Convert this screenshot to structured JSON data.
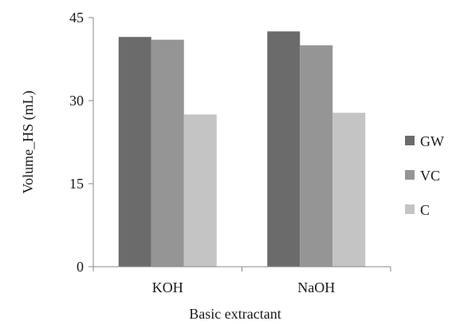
{
  "chart_data": {
    "type": "bar",
    "categories": [
      "KOH",
      "NaOH"
    ],
    "series": [
      {
        "name": "GW",
        "values": [
          41.5,
          42.5
        ],
        "color": "#6b6b6b"
      },
      {
        "name": "VC",
        "values": [
          41.0,
          40.0
        ],
        "color": "#959595"
      },
      {
        "name": "C",
        "values": [
          27.5,
          27.8
        ],
        "color": "#c4c4c4"
      }
    ],
    "title": "",
    "xlabel": "Basic extractant",
    "ylabel": "Volume_HS (mL)",
    "ylim": [
      0,
      45
    ],
    "yticks": [
      0,
      15,
      30,
      45
    ],
    "ytick_labels": [
      "0",
      "15",
      "30",
      "45"
    ],
    "grid": false,
    "legend": "right"
  }
}
